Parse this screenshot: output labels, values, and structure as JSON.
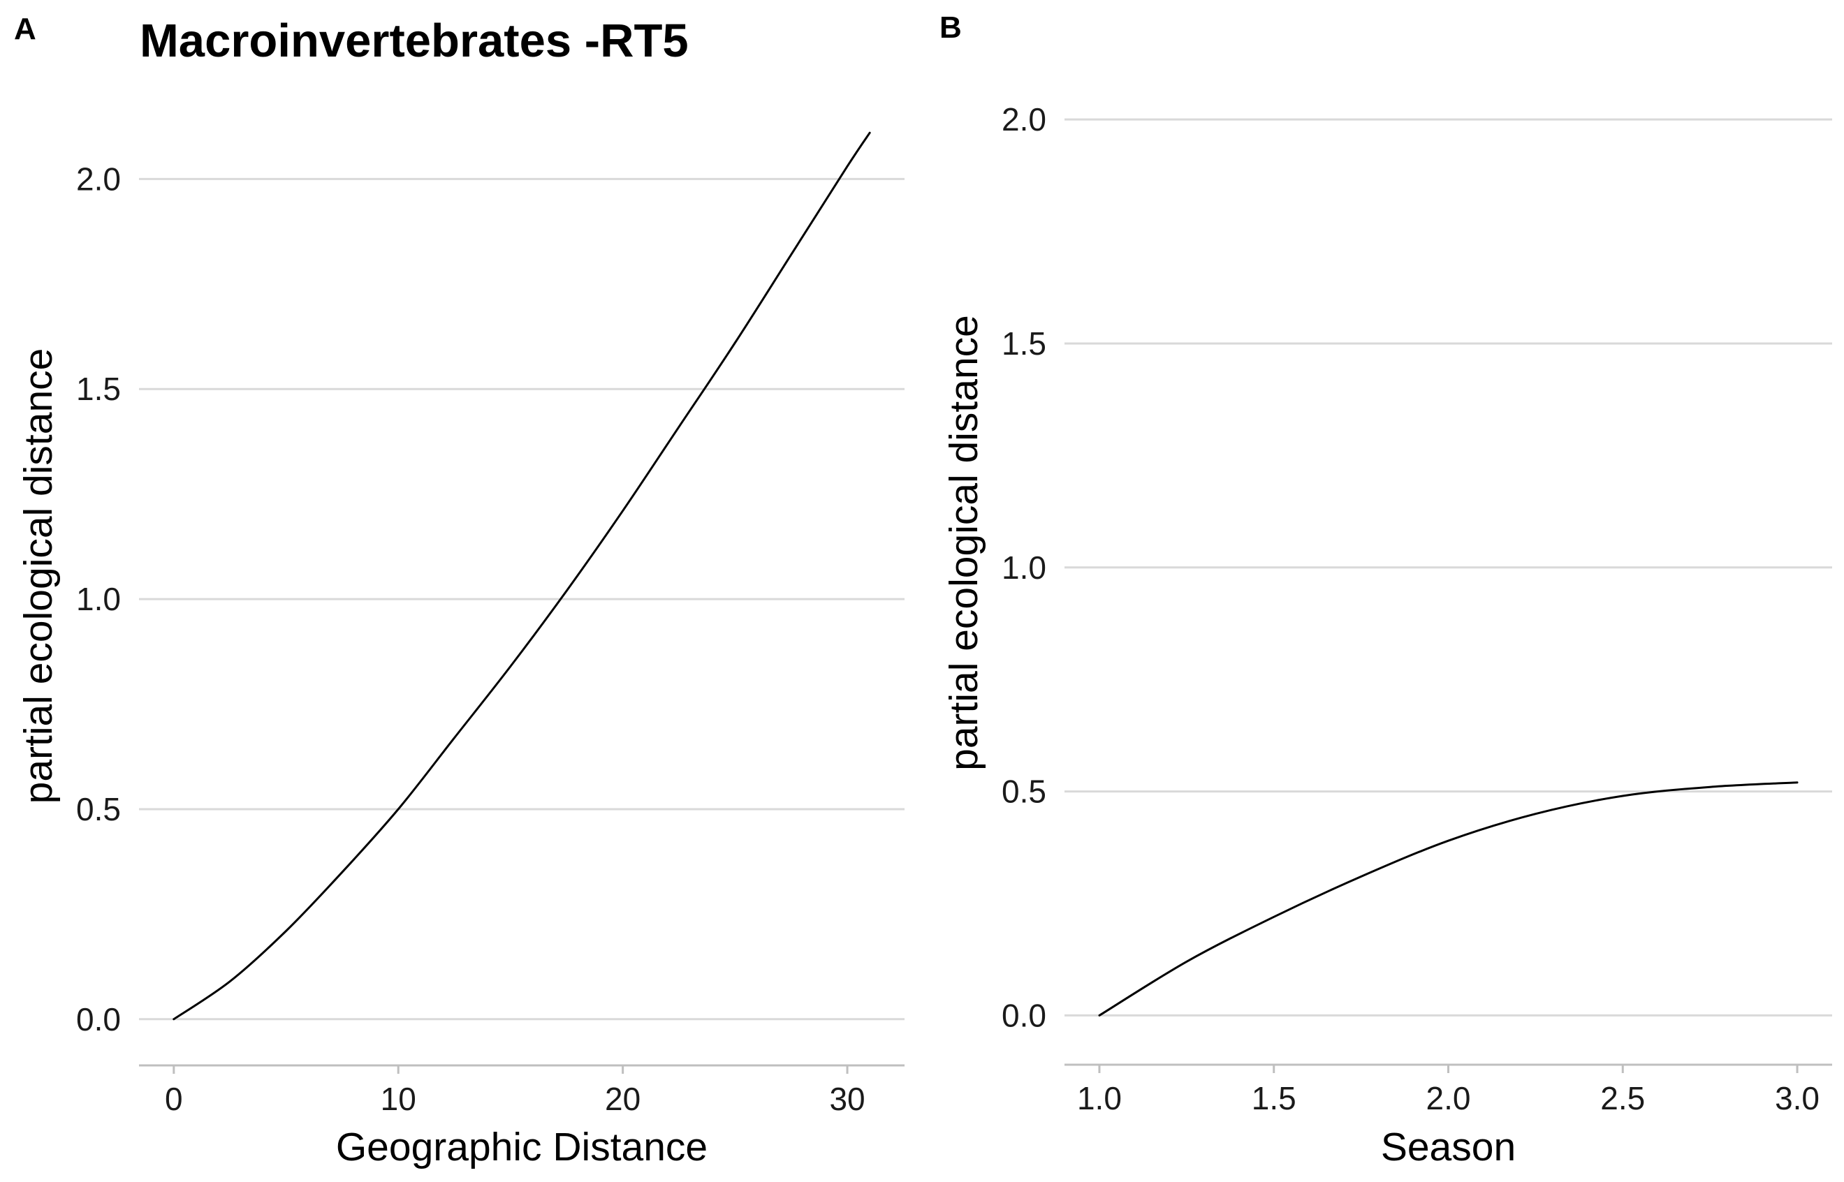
{
  "chart_data": [
    {
      "type": "line",
      "panel_label": "A",
      "title": "Macroinvertebrates -RT5",
      "xlabel": "Geographic Distance",
      "ylabel": "partial ecological distance",
      "x_ticks": [
        "0",
        "10",
        "20",
        "30"
      ],
      "y_ticks": [
        "0.0",
        "0.5",
        "1.0",
        "1.5",
        "2.0"
      ],
      "xlim": [
        -1.55,
        32.55
      ],
      "ylim": [
        -0.11,
        2.22
      ],
      "grid": true,
      "grid_color": "#d9d9d9",
      "axis_color": "#bfbfbf",
      "series": [
        {
          "color": "#000000",
          "x": [
            0,
            2.5,
            5,
            7.5,
            10,
            12.5,
            15,
            17.5,
            20,
            22.5,
            25,
            27.5,
            30,
            31
          ],
          "y": [
            0,
            0.09,
            0.21,
            0.35,
            0.5,
            0.67,
            0.84,
            1.02,
            1.21,
            1.41,
            1.61,
            1.82,
            2.03,
            2.11
          ]
        }
      ]
    },
    {
      "type": "line",
      "panel_label": "B",
      "xlabel": "Season",
      "ylabel": "partial ecological distance",
      "x_ticks": [
        "1.0",
        "1.5",
        "2.0",
        "2.5",
        "3.0"
      ],
      "y_ticks": [
        "0.0",
        "0.5",
        "1.0",
        "1.5",
        "2.0"
      ],
      "xlim": [
        0.9,
        3.1
      ],
      "ylim": [
        -0.11,
        2.22
      ],
      "grid": true,
      "grid_color": "#d9d9d9",
      "axis_color": "#bfbfbf",
      "series": [
        {
          "color": "#000000",
          "x": [
            1.0,
            1.25,
            1.5,
            1.75,
            2.0,
            2.25,
            2.5,
            2.75,
            3.0
          ],
          "y": [
            0,
            0.12,
            0.22,
            0.31,
            0.39,
            0.45,
            0.49,
            0.51,
            0.52
          ]
        }
      ]
    }
  ]
}
